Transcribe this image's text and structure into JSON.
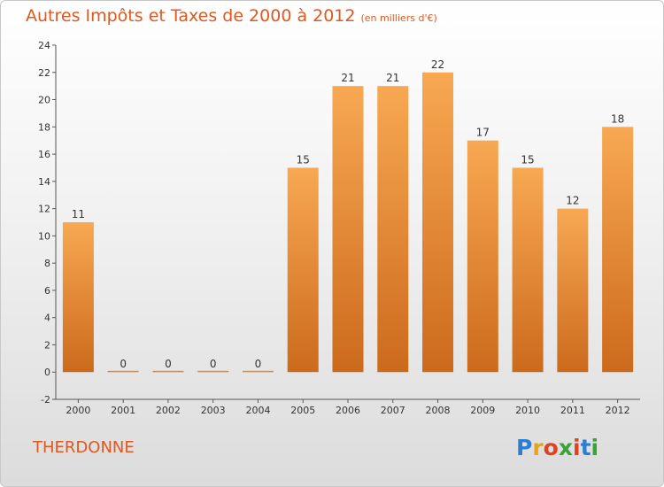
{
  "header": {
    "title": "Autres Impôts et Taxes de 2000 à 2012",
    "subtitle": "(en milliers d'€)"
  },
  "footer": {
    "commune": "THERDONNE",
    "brand": "Proxiti",
    "brand_colors": [
      "#2a7fd4",
      "#e8a317",
      "#e0411f",
      "#3aa335",
      "#e0411f",
      "#2a7fd4",
      "#3aa335"
    ]
  },
  "chart_data": {
    "type": "bar",
    "categories": [
      "2000",
      "2001",
      "2002",
      "2003",
      "2004",
      "2005",
      "2006",
      "2007",
      "2008",
      "2009",
      "2010",
      "2011",
      "2012"
    ],
    "values": [
      11,
      0,
      0,
      0,
      0,
      15,
      21,
      21,
      22,
      17,
      15,
      12,
      18
    ],
    "title": "Autres Impôts et Taxes de 2000 à 2012",
    "subtitle": "(en milliers d'€)",
    "xlabel": "",
    "ylabel": "",
    "ylim": [
      -2,
      24
    ],
    "yticks": [
      -2,
      0,
      2,
      4,
      6,
      8,
      10,
      12,
      14,
      16,
      18,
      20,
      22,
      24
    ],
    "grid": false,
    "legend": "none",
    "bar_color_light": "#f8a852",
    "bar_color_dark": "#cc6a1c"
  }
}
